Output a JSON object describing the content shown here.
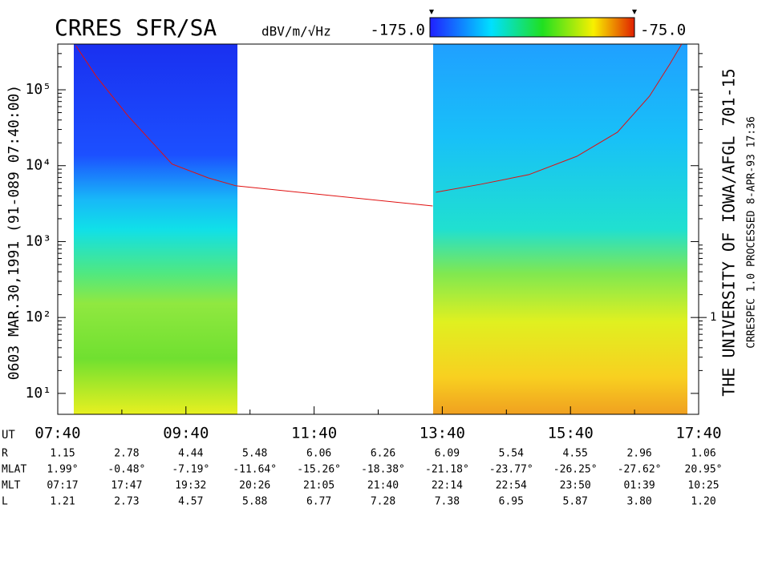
{
  "chart_data": {
    "type": "spectrogram",
    "title": "CRRES SFR/SA",
    "left_label": "0603  MAR.30,1991  (91-089 07:40:00)",
    "right_label": "THE UNIVERSITY OF IOWA/AFGL 701-15",
    "right_sublabel": "CRRESPEC 1.0  PROCESSED 8-APR-93  17:36",
    "colorbar": {
      "label": "dBV/m/√Hz",
      "lim": [
        -175,
        -75
      ],
      "ticks": [
        {
          "value": -175,
          "label": "-175.0"
        },
        {
          "value": -75,
          "label": "-75.0"
        }
      ]
    },
    "x_label": "UT",
    "xlim": [
      "07:40",
      "17:40"
    ],
    "xticks": [
      "07:40",
      "09:40",
      "11:40",
      "13:40",
      "15:40",
      "17:40"
    ],
    "log_y": true,
    "ylim": [
      5.3,
      400000
    ],
    "yticks": [
      {
        "value": 10,
        "label": "10¹"
      },
      {
        "value": 100,
        "label": "10²"
      },
      {
        "value": 1000,
        "label": "10³"
      },
      {
        "value": 10000,
        "label": "10⁴"
      },
      {
        "value": 100000,
        "label": "10⁵"
      }
    ],
    "y2lim": [
      0.053,
      4000
    ],
    "y2ticks": [
      1
    ],
    "series": [
      {
        "color": "#e01010",
        "x": [
          "07:57",
          "08:16",
          "08:46",
          "09:27",
          "10:01",
          "10:27",
          "13:31",
          null,
          "13:34",
          "14:16",
          "15:01",
          "15:46",
          "16:24",
          "16:54",
          "17:13",
          "17:24"
        ],
        "values": [
          380000,
          151000,
          44900,
          10500,
          6900,
          5420,
          2950,
          null,
          4470,
          5690,
          7620,
          13300,
          27600,
          82400,
          218000,
          398000
        ]
      }
    ],
    "ephemeris": {
      "rows": [
        {
          "label": "R",
          "values": [
            "1.15",
            "2.78",
            "4.44",
            "5.48",
            "6.06",
            "6.26",
            "6.09",
            "5.54",
            "4.55",
            "2.96",
            "1.06"
          ]
        },
        {
          "label": "MLAT",
          "values": [
            "1.99°",
            "-0.48°",
            "-7.19°",
            "-11.64°",
            "-15.26°",
            "-18.38°",
            "-21.18°",
            "-23.77°",
            "-26.25°",
            "-27.62°",
            "20.95°"
          ]
        },
        {
          "label": "MLT",
          "values": [
            "07:17",
            "17:47",
            "19:32",
            "20:26",
            "21:05",
            "21:40",
            "22:14",
            "22:54",
            "23:50",
            "01:39",
            "10:25"
          ]
        },
        {
          "label": "L",
          "values": [
            "1.21",
            "2.73",
            "4.57",
            "5.88",
            "6.77",
            "7.28",
            "7.38",
            "6.95",
            "5.87",
            "3.80",
            "1.20"
          ]
        }
      ]
    }
  }
}
